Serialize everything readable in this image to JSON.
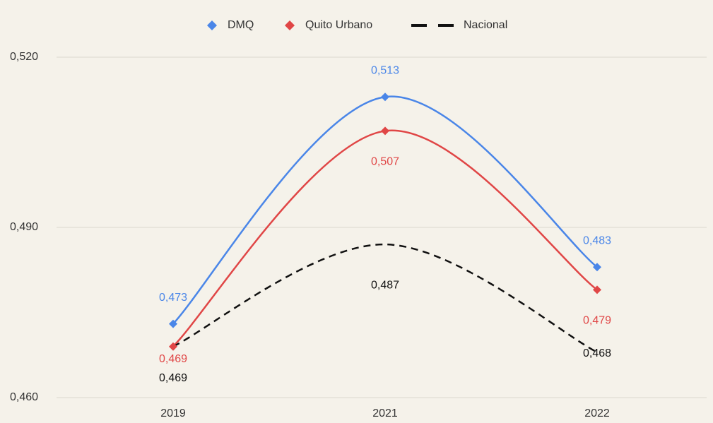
{
  "chart_data": {
    "type": "line",
    "categories": [
      "2019",
      "2021",
      "2022"
    ],
    "series": [
      {
        "name": "DMQ",
        "color": "#4a86e8",
        "marker": "diamond",
        "dash": false,
        "values": [
          0.473,
          0.513,
          0.483
        ],
        "value_labels": [
          "0,473",
          "0,513",
          "0,483"
        ]
      },
      {
        "name": "Quito Urbano",
        "color": "#e04646",
        "marker": "diamond",
        "dash": false,
        "values": [
          0.469,
          0.507,
          0.479
        ],
        "value_labels": [
          "0,469",
          "0,507",
          "0,479"
        ]
      },
      {
        "name": "Nacional",
        "color": "#111111",
        "marker": "none",
        "dash": true,
        "values": [
          0.469,
          0.487,
          0.468
        ],
        "value_labels": [
          "0,469",
          "0,487",
          "0,468"
        ]
      }
    ],
    "ylim": [
      0.46,
      0.52
    ],
    "yticks": [
      {
        "value": 0.46,
        "label": "0,460"
      },
      {
        "value": 0.49,
        "label": "0,490"
      },
      {
        "value": 0.52,
        "label": "0,520"
      }
    ],
    "grid": true,
    "legend": "top"
  }
}
